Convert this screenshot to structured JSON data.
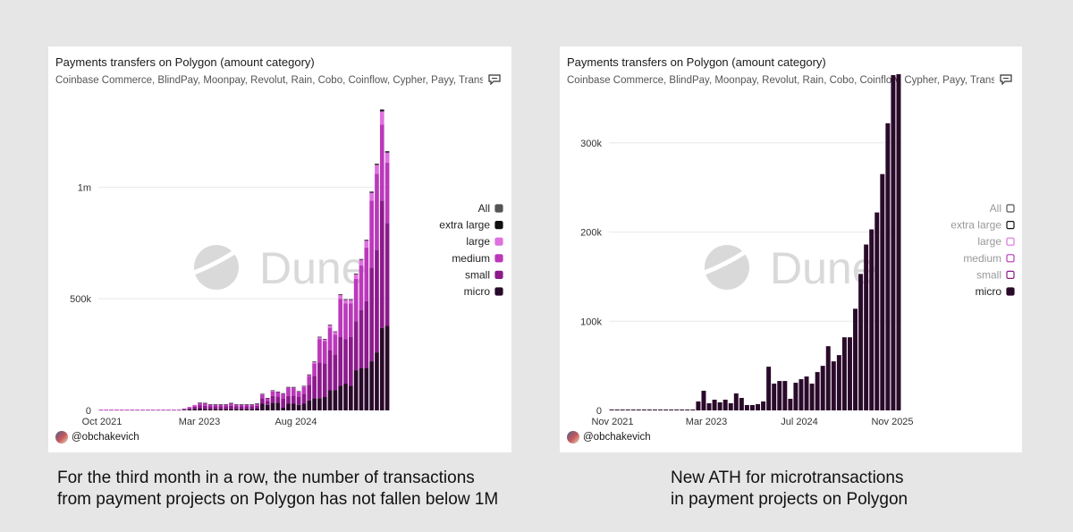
{
  "watermark": "Dune",
  "colors": {
    "micro": "#2a0a2a",
    "small": "#8c1a8c",
    "medium": "#bb38bb",
    "large": "#e070e0",
    "extra_large": "#111111",
    "all": "#555555",
    "grid": "#e8e8e8",
    "watermark": "#d9d9d9"
  },
  "left_panel": {
    "title": "Payments transfers on Polygon (amount category)",
    "subtitle": "Coinbase Commerce, BlindPay, Moonpay, Revolut, Rain, Cobo, Coinflow, Cypher, Payy, Transak",
    "author": "@obchakevich",
    "caption_lines": [
      "For the third month in a row, the number of transactions",
      "from payment projects on Polygon has not fallen below 1M"
    ]
  },
  "right_panel": {
    "title": "Payments transfers on Polygon (amount category)",
    "subtitle": "Coinbase Commerce, BlindPay, Moonpay, Revolut, Rain, Cobo, Coinflow, Cypher, Payy, Transak",
    "author": "@obchakevich",
    "caption_lines": [
      "New ATH for microtransactions",
      "in payment projects on Polygon"
    ]
  },
  "chart_data": [
    {
      "type": "bar",
      "stacked": true,
      "x_ticks": [
        "Oct 2021",
        "Mar 2023",
        "Aug 2024"
      ],
      "y_ticks": [
        "0",
        "500k",
        "1m"
      ],
      "ylim": [
        0,
        1350000
      ],
      "legend_placement": "right",
      "legend": [
        "All",
        "extra large",
        "large",
        "medium",
        "small",
        "micro"
      ],
      "legend_active": [
        true,
        true,
        true,
        true,
        true,
        true
      ],
      "series_order": [
        "micro",
        "small",
        "medium",
        "large",
        "extra_large"
      ],
      "bars": [
        {
          "micro": 2000,
          "small": 1000,
          "medium": 500,
          "large": 100,
          "extra_large": 0
        },
        {
          "micro": 2000,
          "small": 1000,
          "medium": 500,
          "large": 100,
          "extra_large": 0
        },
        {
          "micro": 2000,
          "small": 1000,
          "medium": 500,
          "large": 100,
          "extra_large": 0
        },
        {
          "micro": 2000,
          "small": 1000,
          "medium": 500,
          "large": 100,
          "extra_large": 0
        },
        {
          "micro": 2000,
          "small": 1000,
          "medium": 500,
          "large": 100,
          "extra_large": 0
        },
        {
          "micro": 2000,
          "small": 1000,
          "medium": 500,
          "large": 100,
          "extra_large": 0
        },
        {
          "micro": 2000,
          "small": 1000,
          "medium": 500,
          "large": 100,
          "extra_large": 0
        },
        {
          "micro": 2000,
          "small": 1000,
          "medium": 500,
          "large": 100,
          "extra_large": 0
        },
        {
          "micro": 2000,
          "small": 1000,
          "medium": 500,
          "large": 100,
          "extra_large": 0
        },
        {
          "micro": 2000,
          "small": 1000,
          "medium": 500,
          "large": 100,
          "extra_large": 0
        },
        {
          "micro": 2000,
          "small": 1000,
          "medium": 500,
          "large": 100,
          "extra_large": 0
        },
        {
          "micro": 2000,
          "small": 1000,
          "medium": 500,
          "large": 100,
          "extra_large": 0
        },
        {
          "micro": 2000,
          "small": 1000,
          "medium": 500,
          "large": 100,
          "extra_large": 0
        },
        {
          "micro": 2000,
          "small": 1000,
          "medium": 500,
          "large": 100,
          "extra_large": 0
        },
        {
          "micro": 2000,
          "small": 1000,
          "medium": 500,
          "large": 100,
          "extra_large": 0
        },
        {
          "micro": 2000,
          "small": 1000,
          "medium": 500,
          "large": 100,
          "extra_large": 0
        },
        {
          "micro": 3000,
          "small": 3000,
          "medium": 2000,
          "large": 500,
          "extra_large": 0
        },
        {
          "micro": 5000,
          "small": 6000,
          "medium": 4000,
          "large": 1000,
          "extra_large": 0
        },
        {
          "micro": 7000,
          "small": 10000,
          "medium": 6000,
          "large": 1500,
          "extra_large": 0
        },
        {
          "micro": 8000,
          "small": 14000,
          "medium": 10000,
          "large": 2000,
          "extra_large": 500
        },
        {
          "micro": 7000,
          "small": 14000,
          "medium": 10000,
          "large": 2000,
          "extra_large": 500
        },
        {
          "micro": 7000,
          "small": 11000,
          "medium": 7000,
          "large": 1500,
          "extra_large": 500
        },
        {
          "micro": 7000,
          "small": 11000,
          "medium": 7000,
          "large": 1500,
          "extra_large": 500
        },
        {
          "micro": 7000,
          "small": 11000,
          "medium": 7000,
          "large": 1500,
          "extra_large": 500
        },
        {
          "micro": 7000,
          "small": 11000,
          "medium": 7000,
          "large": 1500,
          "extra_large": 500
        },
        {
          "micro": 7000,
          "small": 14000,
          "medium": 10000,
          "large": 2000,
          "extra_large": 500
        },
        {
          "micro": 7000,
          "small": 11000,
          "medium": 7000,
          "large": 1500,
          "extra_large": 500
        },
        {
          "micro": 7000,
          "small": 11000,
          "medium": 7000,
          "large": 1500,
          "extra_large": 500
        },
        {
          "micro": 7000,
          "small": 11000,
          "medium": 7000,
          "large": 1500,
          "extra_large": 500
        },
        {
          "micro": 7000,
          "small": 11000,
          "medium": 7000,
          "large": 1500,
          "extra_large": 500
        },
        {
          "micro": 8000,
          "small": 13000,
          "medium": 8000,
          "large": 1500,
          "extra_large": 500
        },
        {
          "micro": 30000,
          "small": 25000,
          "medium": 15000,
          "large": 3000,
          "extra_large": 1000
        },
        {
          "micro": 25000,
          "small": 18000,
          "medium": 10000,
          "large": 2000,
          "extra_large": 1000
        },
        {
          "micro": 35000,
          "small": 30000,
          "medium": 20000,
          "large": 4000,
          "extra_large": 1000
        },
        {
          "micro": 35000,
          "small": 28000,
          "medium": 17000,
          "large": 3000,
          "extra_large": 1000
        },
        {
          "micro": 12000,
          "small": 40000,
          "medium": 20000,
          "large": 4000,
          "extra_large": 1000
        },
        {
          "micro": 30000,
          "small": 35000,
          "medium": 35000,
          "large": 4000,
          "extra_large": 1000
        },
        {
          "micro": 30000,
          "small": 37000,
          "medium": 33000,
          "large": 4000,
          "extra_large": 1000
        },
        {
          "micro": 25000,
          "small": 35000,
          "medium": 22000,
          "large": 3000,
          "extra_large": 1000
        },
        {
          "micro": 30000,
          "small": 45000,
          "medium": 30000,
          "large": 4000,
          "extra_large": 1000
        },
        {
          "micro": 45000,
          "small": 70000,
          "medium": 40000,
          "large": 5000,
          "extra_large": 1000
        },
        {
          "micro": 55000,
          "small": 100000,
          "medium": 55000,
          "large": 7000,
          "extra_large": 2000
        },
        {
          "micro": 55000,
          "small": 160000,
          "medium": 105000,
          "large": 8000,
          "extra_large": 2000
        },
        {
          "micro": 60000,
          "small": 150000,
          "medium": 100000,
          "large": 8000,
          "extra_large": 2000
        },
        {
          "micro": 90000,
          "small": 180000,
          "medium": 100000,
          "large": 12000,
          "extra_large": 2000
        },
        {
          "micro": 90000,
          "small": 160000,
          "medium": 90000,
          "large": 12000,
          "extra_large": 2000
        },
        {
          "micro": 110000,
          "small": 220000,
          "medium": 170000,
          "large": 17000,
          "extra_large": 3000
        },
        {
          "micro": 120000,
          "small": 200000,
          "medium": 160000,
          "large": 15000,
          "extra_large": 3000
        },
        {
          "micro": 110000,
          "small": 220000,
          "medium": 150000,
          "large": 15000,
          "extra_large": 3000
        },
        {
          "micro": 180000,
          "small": 220000,
          "medium": 190000,
          "large": 20000,
          "extra_large": 3000
        },
        {
          "micro": 190000,
          "small": 260000,
          "medium": 200000,
          "large": 25000,
          "extra_large": 3000
        },
        {
          "micro": 190000,
          "small": 300000,
          "medium": 240000,
          "large": 30000,
          "extra_large": 4000
        },
        {
          "micro": 220000,
          "small": 420000,
          "medium": 300000,
          "large": 35000,
          "extra_large": 5000
        },
        {
          "micro": 260000,
          "small": 460000,
          "medium": 340000,
          "large": 40000,
          "extra_large": 5000
        },
        {
          "micro": 370000,
          "small": 570000,
          "medium": 340000,
          "large": 60000,
          "extra_large": 8000
        },
        {
          "micro": 380000,
          "small": 460000,
          "medium": 270000,
          "large": 45000,
          "extra_large": 6000
        }
      ]
    },
    {
      "type": "bar",
      "stacked": false,
      "x_ticks": [
        "Nov 2021",
        "Mar 2023",
        "Jul 2024",
        "Nov 2025"
      ],
      "y_ticks": [
        "0",
        "100k",
        "200k",
        "300k"
      ],
      "ylim": [
        0,
        378000
      ],
      "legend_placement": "right",
      "legend": [
        "All",
        "extra large",
        "large",
        "medium",
        "small",
        "micro"
      ],
      "legend_active": [
        false,
        false,
        false,
        false,
        false,
        true
      ],
      "series": [
        {
          "name": "micro",
          "values": [
            1000,
            1000,
            1000,
            1000,
            1000,
            1000,
            1000,
            1000,
            1000,
            1000,
            1000,
            1000,
            1000,
            1000,
            1000,
            1000,
            10000,
            22000,
            8000,
            12000,
            9000,
            12000,
            8000,
            19000,
            14000,
            6000,
            6000,
            7000,
            10000,
            49000,
            30000,
            33000,
            33000,
            13000,
            31000,
            35000,
            38000,
            30000,
            43000,
            50000,
            72000,
            55000,
            62000,
            82000,
            82000,
            114000,
            153000,
            186000,
            203000,
            222000,
            265000,
            322000,
            376000,
            377000
          ]
        }
      ]
    }
  ]
}
